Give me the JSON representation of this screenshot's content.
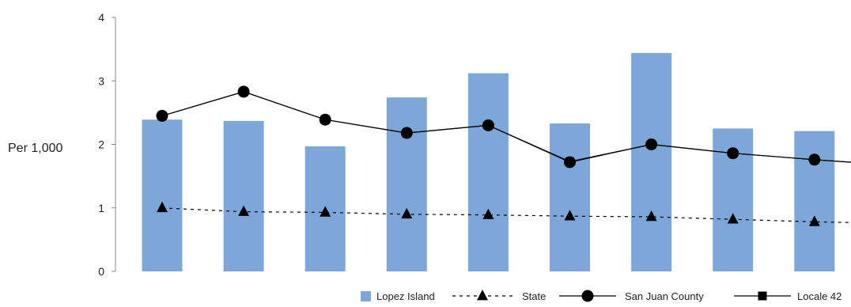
{
  "chart_data": {
    "type": "bar",
    "title": "",
    "xlabel": "",
    "ylabel": "Per 1,000",
    "ylim": [
      0,
      4
    ],
    "yticks": [
      0,
      1,
      2,
      3,
      4
    ],
    "categories": [
      "",
      "",
      "",
      "",
      "",
      "",
      "",
      "",
      ""
    ],
    "grid": false,
    "legend_position": "bottom-right",
    "series": [
      {
        "name": "Lopez Island",
        "kind": "bar",
        "color": "#7da7d9",
        "values": [
          2.39,
          2.37,
          1.97,
          2.74,
          3.12,
          2.33,
          3.44,
          2.25,
          2.21
        ]
      },
      {
        "name": "State",
        "kind": "line",
        "style": "dashed",
        "marker": "triangle",
        "color": "#000000",
        "values": [
          1.0,
          0.94,
          0.93,
          0.9,
          0.89,
          0.87,
          0.86,
          0.82,
          0.78
        ],
        "tail": 0.77
      },
      {
        "name": "San Juan County",
        "kind": "line",
        "style": "solid",
        "marker": "circle",
        "color": "#000000",
        "values": [
          2.45,
          2.83,
          2.39,
          2.18,
          2.3,
          1.72,
          2.0,
          1.86,
          1.76
        ],
        "tail": 1.72
      },
      {
        "name": "Locale 42",
        "kind": "line",
        "style": "solid",
        "marker": "square",
        "color": "#000000",
        "values": [
          2.45,
          2.83,
          2.39,
          2.18,
          2.3,
          1.73,
          2.0,
          1.86,
          1.76
        ],
        "tail": 1.72
      }
    ]
  }
}
